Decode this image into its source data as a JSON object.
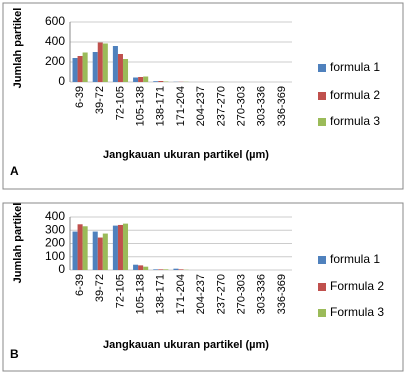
{
  "chart_data": [
    {
      "type": "bar",
      "label": "A",
      "x_label": "Jangkauan ukuran partikel (µm)",
      "y_label": "Jumlah partikel",
      "categories": [
        "6-39",
        "39-72",
        "72-105",
        "105-138",
        "138-171",
        "171-204",
        "204-237",
        "237-270",
        "270-303",
        "303-336",
        "336-369"
      ],
      "series": [
        {
          "name": "formula 1",
          "color": "#4f81bd",
          "values": [
            240,
            300,
            360,
            45,
            8,
            2,
            0,
            0,
            0,
            0,
            0
          ]
        },
        {
          "name": "formula 2",
          "color": "#c0504d",
          "values": [
            260,
            395,
            280,
            50,
            10,
            2,
            0,
            0,
            0,
            0,
            0
          ]
        },
        {
          "name": "formula 3",
          "color": "#9bbb59",
          "values": [
            295,
            385,
            230,
            55,
            5,
            2,
            0,
            0,
            0,
            0,
            0
          ]
        }
      ],
      "ylim": [
        0,
        600
      ],
      "yticks": [
        0,
        200,
        400,
        600
      ],
      "grid": true
    },
    {
      "type": "bar",
      "label": "B",
      "x_label": "Jangkauan ukuran partikel (µm)",
      "y_label": "Jumlah partikel",
      "categories": [
        "6-39",
        "39-72",
        "72-105",
        "105-138",
        "138-171",
        "171-204",
        "204-237",
        "237-270",
        "270-303",
        "303-336",
        "336-369"
      ],
      "series": [
        {
          "name": "formula 1",
          "color": "#4f81bd",
          "values": [
            290,
            290,
            335,
            40,
            5,
            10,
            0,
            0,
            0,
            0,
            0
          ]
        },
        {
          "name": "Formula 2",
          "color": "#c0504d",
          "values": [
            345,
            245,
            340,
            35,
            5,
            5,
            0,
            0,
            0,
            0,
            0
          ]
        },
        {
          "name": "Formula 3",
          "color": "#9bbb59",
          "values": [
            330,
            275,
            350,
            25,
            5,
            2,
            0,
            0,
            0,
            0,
            0
          ]
        }
      ],
      "ylim": [
        0,
        400
      ],
      "yticks": [
        0,
        100,
        200,
        300,
        400
      ],
      "grid": true
    }
  ]
}
